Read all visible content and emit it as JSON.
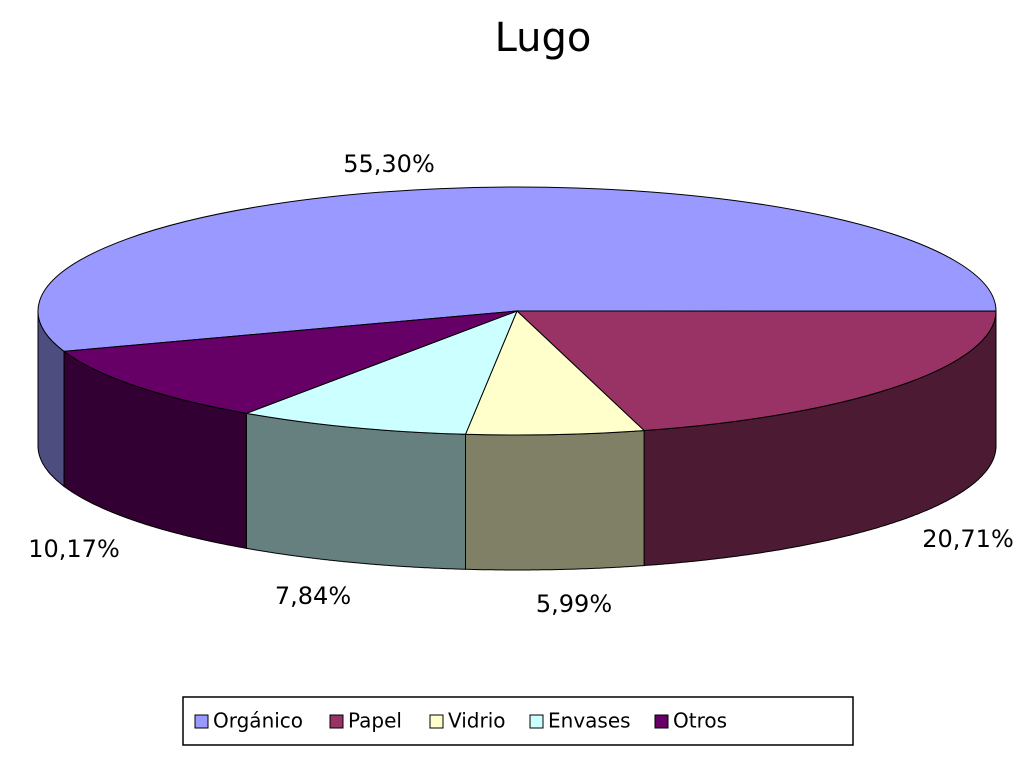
{
  "chart_data": {
    "type": "pie",
    "title": "Lugo",
    "categories": [
      "Orgánico",
      "Papel",
      "Vidrio",
      "Envases",
      "Otros"
    ],
    "values": [
      55.3,
      20.71,
      5.99,
      7.84,
      10.17
    ],
    "value_labels": [
      "55,30%",
      "20,71%",
      "5,99%",
      "7,84%",
      "10,17%"
    ],
    "colors": [
      "#9999ff",
      "#993366",
      "#ffffcc",
      "#ccffff",
      "#660066"
    ],
    "legend": "bottom"
  }
}
